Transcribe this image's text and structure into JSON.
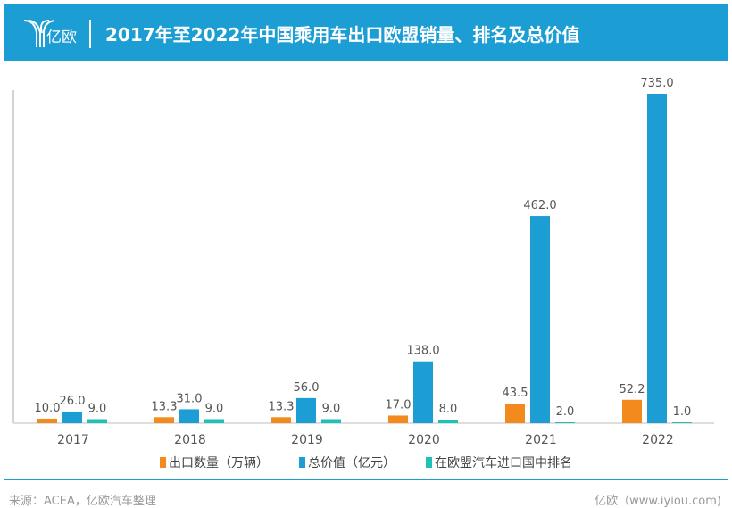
{
  "header": {
    "logo_text": "亿欧",
    "title": "2017年至2022年中国乘用车出口欧盟销量、排名及总价值"
  },
  "chart_data": {
    "type": "bar",
    "title": "2017年至2022年中国乘用车出口欧盟销量、排名及总价值",
    "categories": [
      "2017",
      "2018",
      "2019",
      "2020",
      "2021",
      "2022"
    ],
    "series": [
      {
        "name": "出口数量（万辆）",
        "color": "#f28a1e",
        "values": [
          10.0,
          13.3,
          13.3,
          17.0,
          43.5,
          52.2
        ],
        "labels": [
          "10.0",
          "13.3",
          "13.3",
          "17.0",
          "43.5",
          "52.2"
        ]
      },
      {
        "name": "总价值（亿元）",
        "color": "#1c9dd4",
        "values": [
          26.0,
          31.0,
          56.0,
          138.0,
          462.0,
          735.0
        ],
        "labels": [
          "26.0",
          "31.0",
          "56.0",
          "138.0",
          "462.0",
          "735.0"
        ]
      },
      {
        "name": "在欧盟汽车进口国中排名",
        "color": "#1fc0b8",
        "values": [
          9.0,
          9.0,
          9.0,
          8.0,
          2.0,
          1.0
        ],
        "labels": [
          "9.0",
          "9.0",
          "9.0",
          "8.0",
          "2.0",
          "1.0"
        ]
      }
    ],
    "xlabel": "",
    "ylabel": "",
    "ylim": [
      0,
      750
    ],
    "grid": false,
    "legend": "bottom"
  },
  "footer": {
    "source": "来源：ACEA，亿欧汽车整理",
    "site": "亿欧（www.iyiou.com)"
  }
}
